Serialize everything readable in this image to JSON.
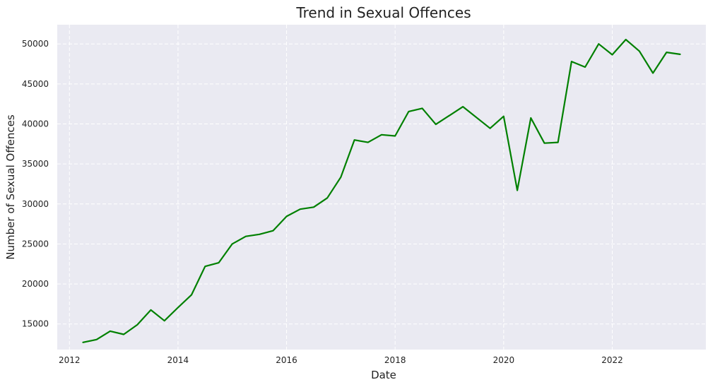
{
  "chart_data": {
    "type": "line",
    "title": "Trend in Sexual Offences",
    "xlabel": "Date",
    "ylabel": "Number of Sexual Offences",
    "xlim": [
      2011.775,
      2023.725
    ],
    "ylim": [
      11800,
      52400
    ],
    "x_ticks": [
      {
        "value": 2012,
        "label": "2012"
      },
      {
        "value": 2014,
        "label": "2014"
      },
      {
        "value": 2016,
        "label": "2016"
      },
      {
        "value": 2018,
        "label": "2018"
      },
      {
        "value": 2020,
        "label": "2020"
      },
      {
        "value": 2022,
        "label": "2022"
      }
    ],
    "y_ticks": [
      {
        "value": 15000,
        "label": "15000"
      },
      {
        "value": 20000,
        "label": "20000"
      },
      {
        "value": 25000,
        "label": "25000"
      },
      {
        "value": 30000,
        "label": "30000"
      },
      {
        "value": 35000,
        "label": "35000"
      },
      {
        "value": 40000,
        "label": "40000"
      },
      {
        "value": 45000,
        "label": "45000"
      },
      {
        "value": 50000,
        "label": "50000"
      }
    ],
    "grid": true,
    "background": "#eaeaf2",
    "line_color": "#008000",
    "series": [
      {
        "x": [
          2012.25,
          2012.5,
          2012.75,
          2013.0,
          2013.25,
          2013.5,
          2013.75,
          2014.0,
          2014.25,
          2014.5,
          2014.75,
          2015.0,
          2015.25,
          2015.5,
          2015.75,
          2016.0,
          2016.25,
          2016.5,
          2016.75,
          2017.0,
          2017.25,
          2017.5,
          2017.75,
          2018.0,
          2018.25,
          2018.5,
          2018.75,
          2019.25,
          2019.75,
          2020.0,
          2020.25,
          2020.5,
          2020.75,
          2021.0,
          2021.25,
          2021.5,
          2021.75,
          2022.0,
          2022.25,
          2022.5,
          2022.75,
          2023.0,
          2023.25
        ],
        "values": [
          12700,
          13050,
          14100,
          13700,
          14900,
          16750,
          15400,
          17050,
          18650,
          22200,
          22650,
          25000,
          25950,
          26200,
          26650,
          28450,
          29350,
          29600,
          30750,
          33350,
          38000,
          37700,
          38650,
          38500,
          41550,
          41950,
          39950,
          42150,
          39450,
          40950,
          31700,
          40750,
          37600,
          37700,
          47800,
          47100,
          50000,
          48650,
          50550,
          49100,
          46350,
          48950,
          48700
        ]
      }
    ]
  }
}
